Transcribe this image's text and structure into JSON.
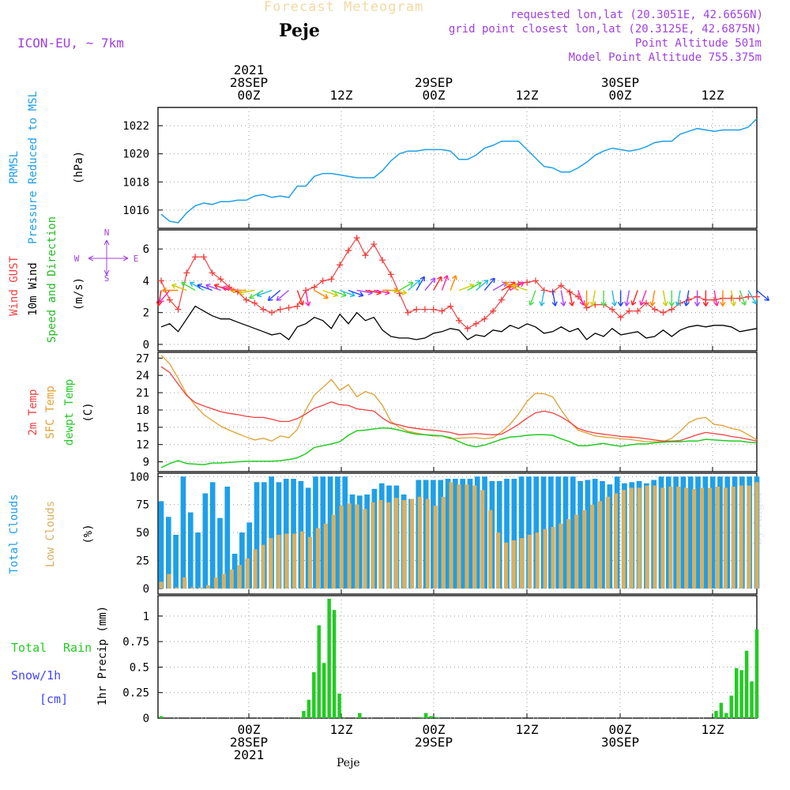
{
  "header": {
    "title": "Forecast Meteogram",
    "location": "Peje",
    "model": "ICON-EU, ~ 7km",
    "requested": "requested lon,lat (20.3051E, 42.6656N)",
    "gridpoint": "grid point closest lon,lat (20.3125E, 42.6875N)",
    "point_alt": "Point Altitude 501m",
    "model_alt": "Model Point Altitude 755.375m"
  },
  "footer": {
    "location": "Peje"
  },
  "watermark": "by Angel",
  "colors": {
    "pressure": "#1E9FE8",
    "gust": "#F04040",
    "wind": "#000000",
    "dirlabel": "#22BB22",
    "temp": "#F04040",
    "sfc": "#E0A030",
    "dew": "#22CC22",
    "total_clouds": "#1E9FE8",
    "low_clouds": "#D8B060",
    "rain": "#22CC22",
    "snow": "#4444FF",
    "compass": "#A040E0"
  },
  "chart_data": [
    {
      "id": "pressure",
      "type": "line",
      "side_labels": [
        "PRMSL",
        "Pressure Reduced to MSL"
      ],
      "unit": "(hPa)",
      "ylim": [
        1014.7,
        1023.3
      ],
      "yticks": [
        1016,
        1018,
        1020,
        1022
      ],
      "series": [
        {
          "name": "PRMSL",
          "values": [
            1015.7,
            1015.2,
            1015.1,
            1015.8,
            1016.3,
            1016.5,
            1016.4,
            1016.6,
            1016.6,
            1016.7,
            1016.7,
            1017.0,
            1017.1,
            1016.9,
            1017.0,
            1016.9,
            1017.7,
            1017.7,
            1018.4,
            1018.6,
            1018.6,
            1018.5,
            1018.4,
            1018.3,
            1018.3,
            1018.3,
            1018.8,
            1019.5,
            1020.0,
            1020.2,
            1020.2,
            1020.3,
            1020.3,
            1020.3,
            1020.2,
            1019.6,
            1019.6,
            1019.9,
            1020.4,
            1020.6,
            1020.9,
            1020.9,
            1020.9,
            1020.3,
            1019.7,
            1019.1,
            1019.0,
            1018.7,
            1018.7,
            1019.0,
            1019.4,
            1019.9,
            1020.2,
            1020.4,
            1020.3,
            1020.2,
            1020.3,
            1020.5,
            1020.8,
            1020.9,
            1020.9,
            1021.4,
            1021.6,
            1021.8,
            1021.7,
            1021.6,
            1021.7,
            1021.7,
            1021.7,
            1021.9,
            1022.5
          ]
        }
      ]
    },
    {
      "id": "wind",
      "type": "line",
      "side_labels": [
        "Wind GUST",
        "10m Wind",
        "Speed and Direction"
      ],
      "unit": "(m/s)",
      "compass": {
        "n": "N",
        "s": "S",
        "w": "W",
        "e": "E"
      },
      "ylim": [
        -0.4,
        7.2
      ],
      "yticks": [
        0,
        2,
        4,
        6
      ],
      "series": [
        {
          "name": "Wind GUST",
          "values": [
            4.0,
            2.8,
            2.2,
            4.5,
            5.5,
            5.5,
            4.5,
            4.1,
            3.6,
            3.3,
            2.8,
            2.6,
            2.2,
            2.0,
            2.2,
            2.3,
            2.4,
            3.4,
            3.6,
            4.0,
            4.1,
            5.0,
            5.9,
            6.7,
            5.6,
            6.3,
            5.3,
            4.4,
            3.2,
            2.0,
            2.2,
            2.2,
            2.2,
            2.1,
            2.4,
            1.5,
            1.0,
            1.3,
            1.6,
            2.1,
            2.8,
            3.6,
            3.8,
            3.9,
            4.0,
            3.4,
            3.3,
            3.7,
            3.3,
            3.0,
            2.3,
            2.5,
            2.5,
            2.2,
            1.7,
            2.1,
            2.1,
            2.6,
            2.2,
            2.0,
            2.2,
            2.6,
            2.8,
            3.0,
            2.8,
            2.8,
            2.9,
            2.9,
            2.9,
            3.0,
            3.0
          ]
        },
        {
          "name": "10m Wind",
          "values": [
            1.1,
            1.3,
            0.8,
            1.6,
            2.4,
            2.1,
            1.8,
            1.6,
            1.6,
            1.4,
            1.2,
            1.0,
            0.8,
            0.6,
            0.7,
            0.3,
            1.1,
            1.3,
            1.7,
            1.5,
            1.0,
            1.9,
            1.3,
            2.0,
            1.5,
            1.7,
            0.9,
            0.5,
            0.4,
            0.4,
            0.3,
            0.4,
            0.7,
            0.8,
            1.0,
            0.9,
            0.3,
            0.6,
            0.5,
            0.9,
            0.8,
            1.2,
            1.0,
            1.3,
            1.1,
            0.7,
            0.8,
            1.1,
            0.8,
            1.0,
            0.3,
            0.7,
            0.5,
            1.0,
            0.6,
            0.7,
            0.8,
            0.4,
            0.5,
            0.9,
            0.5,
            0.9,
            1.1,
            1.2,
            1.1,
            1.2,
            1.2,
            1.1,
            0.8,
            0.9,
            1.0
          ]
        }
      ],
      "direction_deg": [
        190,
        220,
        270,
        290,
        300,
        300,
        290,
        290,
        290,
        280,
        270,
        260,
        240,
        250,
        230,
        230,
        160,
        170,
        120,
        110,
        110,
        110,
        110,
        100,
        100,
        100,
        90,
        100,
        60,
        50,
        30,
        40,
        30,
        20,
        20,
        70,
        60,
        50,
        40,
        60,
        60,
        60,
        300,
        290,
        200,
        190,
        170,
        170,
        170,
        160,
        180,
        190,
        180,
        170,
        180,
        190,
        200,
        200,
        190,
        170,
        180,
        190,
        190,
        180,
        180,
        170,
        180,
        170,
        160,
        150,
        130
      ]
    },
    {
      "id": "temperature",
      "type": "line",
      "side_labels": [
        "2m Temp",
        "SFC Temp",
        "dewpt Temp"
      ],
      "unit": "(C)",
      "ylim": [
        7.3,
        28.0
      ],
      "yticks": [
        9,
        12,
        15,
        18,
        21,
        24,
        27
      ],
      "series": [
        {
          "name": "2m Temp",
          "values": [
            25.5,
            24.5,
            22.5,
            20.5,
            19.3,
            18.7,
            18.2,
            17.7,
            17.4,
            17.2,
            16.9,
            16.7,
            16.7,
            16.4,
            16.0,
            16.0,
            16.5,
            17.3,
            18.3,
            18.8,
            19.4,
            18.9,
            18.8,
            18.2,
            18.0,
            17.8,
            16.6,
            15.7,
            15.4,
            15.0,
            14.8,
            14.6,
            14.5,
            14.3,
            14.1,
            13.7,
            13.8,
            13.9,
            13.8,
            13.7,
            13.8,
            14.6,
            15.5,
            16.6,
            17.5,
            17.8,
            17.5,
            16.8,
            15.9,
            14.8,
            14.3,
            14.0,
            13.8,
            13.6,
            13.4,
            13.3,
            13.2,
            13.0,
            12.8,
            12.6,
            12.6,
            12.7,
            13.2,
            13.7,
            14.1,
            13.9,
            13.7,
            13.4,
            13.2,
            12.9,
            12.6
          ]
        },
        {
          "name": "SFC Temp",
          "values": [
            27.5,
            26.0,
            23.5,
            20.7,
            18.8,
            17.2,
            16.2,
            15.2,
            14.5,
            13.9,
            13.3,
            12.8,
            13.1,
            12.6,
            13.5,
            13.2,
            14.6,
            18.0,
            20.6,
            21.9,
            23.3,
            21.4,
            22.4,
            20.3,
            21.2,
            20.7,
            18.8,
            16.0,
            15.0,
            14.3,
            14.0,
            13.7,
            13.5,
            13.5,
            13.0,
            13.1,
            13.2,
            13.2,
            13.0,
            13.2,
            14.2,
            15.5,
            17.3,
            19.5,
            20.9,
            20.8,
            20.3,
            18.0,
            16.0,
            14.5,
            14.0,
            13.5,
            13.3,
            13.2,
            13.0,
            12.9,
            12.7,
            12.5,
            12.5,
            12.5,
            13.1,
            14.3,
            15.8,
            16.5,
            16.7,
            15.5,
            15.3,
            14.8,
            14.5,
            13.7,
            12.8
          ]
        },
        {
          "name": "dewpt Temp",
          "values": [
            8.0,
            8.7,
            9.2,
            8.7,
            8.6,
            8.5,
            8.8,
            8.8,
            8.9,
            9.0,
            9.1,
            9.1,
            9.1,
            9.1,
            9.2,
            9.4,
            9.7,
            10.4,
            11.5,
            11.8,
            12.1,
            12.5,
            13.6,
            14.4,
            14.5,
            14.7,
            14.9,
            14.8,
            14.5,
            14.1,
            13.8,
            13.7,
            13.6,
            13.5,
            13.2,
            12.5,
            11.9,
            11.6,
            11.9,
            12.4,
            12.9,
            13.3,
            13.4,
            13.6,
            13.7,
            13.7,
            13.6,
            13.0,
            12.5,
            11.8,
            11.8,
            12.0,
            12.2,
            11.9,
            11.7,
            11.9,
            12.1,
            12.1,
            12.3,
            12.4,
            12.5,
            12.5,
            12.6,
            12.6,
            12.9,
            12.8,
            12.7,
            12.6,
            12.6,
            12.4,
            12.3
          ]
        }
      ]
    },
    {
      "id": "clouds",
      "type": "bar",
      "side_labels": [
        "Total Clouds",
        "Low Clouds"
      ],
      "unit": "(%)",
      "ylim": [
        -5,
        103
      ],
      "yticks": [
        0,
        25,
        50,
        75,
        100
      ],
      "series": [
        {
          "name": "Total Clouds",
          "values": [
            78,
            64,
            48,
            100,
            68,
            50,
            85,
            95,
            63,
            91,
            31,
            50,
            59,
            95,
            95,
            100,
            95,
            98,
            98,
            96,
            90,
            100,
            100,
            100,
            100,
            100,
            84,
            83,
            84,
            89,
            94,
            92,
            92,
            84,
            80,
            97,
            97,
            97,
            97,
            98,
            98,
            98,
            98,
            100,
            100,
            96,
            96,
            98,
            98,
            100,
            100,
            100,
            100,
            100,
            100,
            100,
            100,
            96,
            97,
            98,
            96,
            93,
            100,
            94,
            95,
            96,
            94,
            97,
            100,
            100,
            100,
            100,
            100,
            100,
            100,
            100,
            100,
            100,
            100,
            100,
            100,
            100
          ]
        },
        {
          "name": "Low Clouds",
          "values": [
            6,
            13,
            1,
            10,
            1,
            1,
            3,
            10,
            13,
            17,
            21,
            27,
            35,
            39,
            45,
            48,
            49,
            49,
            51,
            46,
            54,
            58,
            66,
            74,
            76,
            75,
            71,
            77,
            79,
            77,
            81,
            79,
            80,
            82,
            80,
            74,
            82,
            95,
            93,
            93,
            92,
            88,
            70,
            50,
            41,
            43,
            45,
            48,
            50,
            53,
            55,
            58,
            62,
            66,
            70,
            75,
            78,
            82,
            85,
            88,
            90,
            90,
            92,
            92,
            90,
            91,
            91,
            90,
            89,
            90,
            90,
            91,
            90,
            91,
            92,
            92,
            95
          ]
        }
      ]
    },
    {
      "id": "precip",
      "type": "bar",
      "side_labels": [
        "Total",
        "Rain",
        "Snow/1h",
        "[cm]"
      ],
      "axis_title": "1hr Precip (mm)",
      "ylim": [
        0,
        1.2
      ],
      "yticks": [
        0,
        0.25,
        0.5,
        0.75,
        1
      ],
      "series": [
        {
          "name": "Total Rain",
          "values": [
            0.02,
            0,
            0,
            0,
            0,
            0,
            0,
            0,
            0,
            0,
            0,
            0,
            0,
            0,
            0,
            0,
            0,
            0,
            0,
            0,
            0,
            0,
            0,
            0,
            0,
            0,
            0,
            0,
            0.07,
            0.18,
            0.45,
            0.91,
            0.54,
            1.17,
            1.06,
            0.24,
            0,
            0,
            0,
            0.05,
            0,
            0,
            0,
            0,
            0,
            0,
            0,
            0,
            0,
            0,
            0,
            0.01,
            0.05,
            0.02,
            0.01,
            0,
            0,
            0,
            0,
            0,
            0,
            0,
            0,
            0,
            0,
            0,
            0,
            0,
            0,
            0,
            0,
            0,
            0,
            0,
            0,
            0,
            0,
            0,
            0,
            0,
            0,
            0,
            0,
            0,
            0,
            0,
            0,
            0,
            0,
            0,
            0,
            0,
            0,
            0,
            0,
            0,
            0,
            0,
            0,
            0,
            0,
            0,
            0,
            0,
            0,
            0,
            0,
            0,
            0,
            0.07,
            0.15,
            0.05,
            0.22,
            0.49,
            0.47,
            0.66,
            0.36,
            0.87
          ]
        }
      ]
    }
  ],
  "time_axis": {
    "top_labels": [
      {
        "lines": [
          "2021",
          "28SEP",
          "00Z"
        ]
      },
      {
        "lines": [
          "12Z"
        ]
      },
      {
        "lines": [
          "29SEP",
          "00Z"
        ]
      },
      {
        "lines": [
          "12Z"
        ]
      },
      {
        "lines": [
          "30SEP",
          "00Z"
        ]
      },
      {
        "lines": [
          "12Z"
        ]
      }
    ],
    "bottom_labels": [
      {
        "lines": [
          "00Z",
          "28SEP",
          "2021"
        ]
      },
      {
        "lines": [
          "12Z"
        ]
      },
      {
        "lines": [
          "00Z",
          "29SEP"
        ]
      },
      {
        "lines": [
          "12Z"
        ]
      },
      {
        "lines": [
          "00Z",
          "30SEP"
        ]
      },
      {
        "lines": [
          "12Z"
        ]
      }
    ]
  }
}
